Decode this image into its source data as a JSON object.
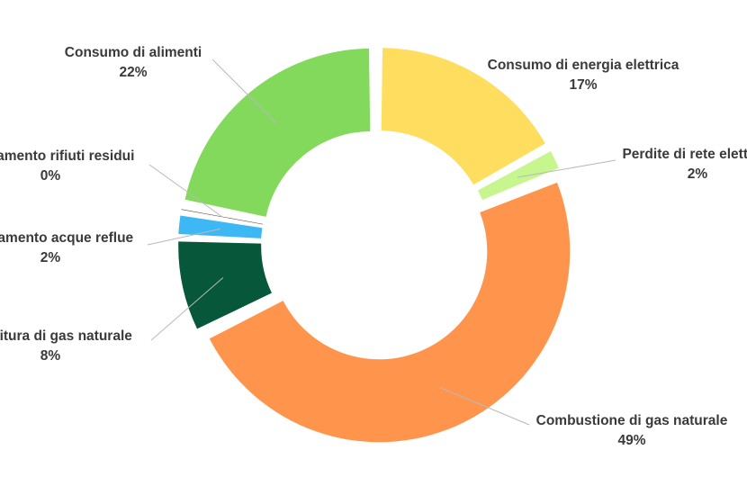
{
  "chart_data": {
    "type": "pie",
    "variant": "donut",
    "legend": "none",
    "slices": [
      {
        "label": "Consumo di energia elettrica",
        "value_label": "17%",
        "value": 17,
        "color": "#FFDD5E"
      },
      {
        "label": "Perdite di rete elettrica",
        "value_label": "2%",
        "value": 2,
        "color": "#C6F68D"
      },
      {
        "label": "Combustione di gas naturale",
        "value_label": "49%",
        "value": 49,
        "color": "#FF944D"
      },
      {
        "label": "Fornitura di gas naturale",
        "value_label": "8%",
        "value": 8,
        "color": "#07573A"
      },
      {
        "label": "Trattamento acque reflue",
        "value_label": "2%",
        "value": 2,
        "color": "#3DB8F5"
      },
      {
        "label": "Trattamento rifiuti residui",
        "value_label": "0%",
        "value": 0.5,
        "color": "#5A4A42"
      },
      {
        "label": "Consumo di alimenti",
        "value_label": "22%",
        "value": 22,
        "color": "#82D95B"
      }
    ]
  }
}
